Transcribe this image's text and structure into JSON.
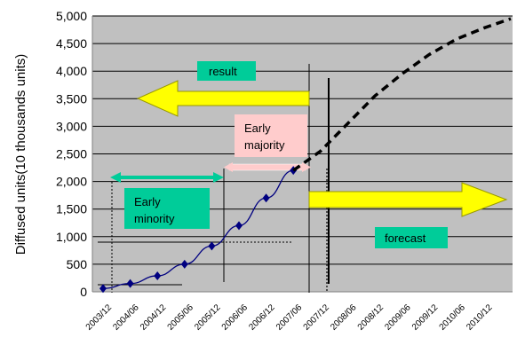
{
  "chart_data": {
    "type": "line",
    "title": "",
    "xlabel": "",
    "ylabel": "Diffused units(10 thousands units)",
    "ylim": [
      0,
      5000
    ],
    "yticks": [
      0,
      500,
      1000,
      1500,
      2000,
      2500,
      3000,
      3500,
      4000,
      4500,
      5000
    ],
    "ytick_labels": [
      "0",
      "500",
      "1,000",
      "1,500",
      "2,000",
      "2,500",
      "3,000",
      "3,500",
      "4,000",
      "4,500",
      "5,000"
    ],
    "categories": [
      "2003/12",
      "2004/06",
      "2004/12",
      "2005/06",
      "2005/12",
      "2006/06",
      "2006/12",
      "2007/06",
      "2007/12",
      "2008/06",
      "2008/12",
      "2009/06",
      "2009/12",
      "2010/06",
      "2010/12"
    ],
    "grid": true,
    "plot_background": "#c0c0c0",
    "series": [
      {
        "kind": "result",
        "style": "solid",
        "color": "#000080",
        "marker": "diamond",
        "points": [
          {
            "x": "2003/12",
            "y": 60
          },
          {
            "x": "2004/06",
            "y": 150
          },
          {
            "x": "2004/12",
            "y": 290
          },
          {
            "x": "2005/06",
            "y": 500
          },
          {
            "x": "2005/12",
            "y": 830
          },
          {
            "x": "2006/06",
            "y": 1200
          },
          {
            "x": "2006/12",
            "y": 1700
          },
          {
            "x": "2007/06",
            "y": 2200
          }
        ]
      },
      {
        "kind": "forecast",
        "style": "dashed",
        "color": "#000000",
        "points": [
          {
            "x": "2007/06",
            "y": 2200
          },
          {
            "x": "2007/12",
            "y": 2550
          },
          {
            "x": "2008/06",
            "y": 3050
          },
          {
            "x": "2008/12",
            "y": 3550
          },
          {
            "x": "2009/06",
            "y": 3950
          },
          {
            "x": "2009/12",
            "y": 4300
          },
          {
            "x": "2010/06",
            "y": 4580
          },
          {
            "x": "2010/12",
            "y": 4780
          },
          {
            "x": "2011/06",
            "y": 4950
          }
        ]
      }
    ],
    "annotations": {
      "result_label": "result",
      "forecast_label": "forecast",
      "early_minority_line1": "Early",
      "early_minority_line2": "minority",
      "early_majority_line1": "Early",
      "early_majority_line2": "majority"
    },
    "colors": {
      "arrow_fill": "#ffff00",
      "label_box_green": "#00cc99",
      "label_box_pink": "#ffcccc",
      "bracket_green": "#00cc99",
      "bracket_pink": "#ffcccc"
    }
  }
}
